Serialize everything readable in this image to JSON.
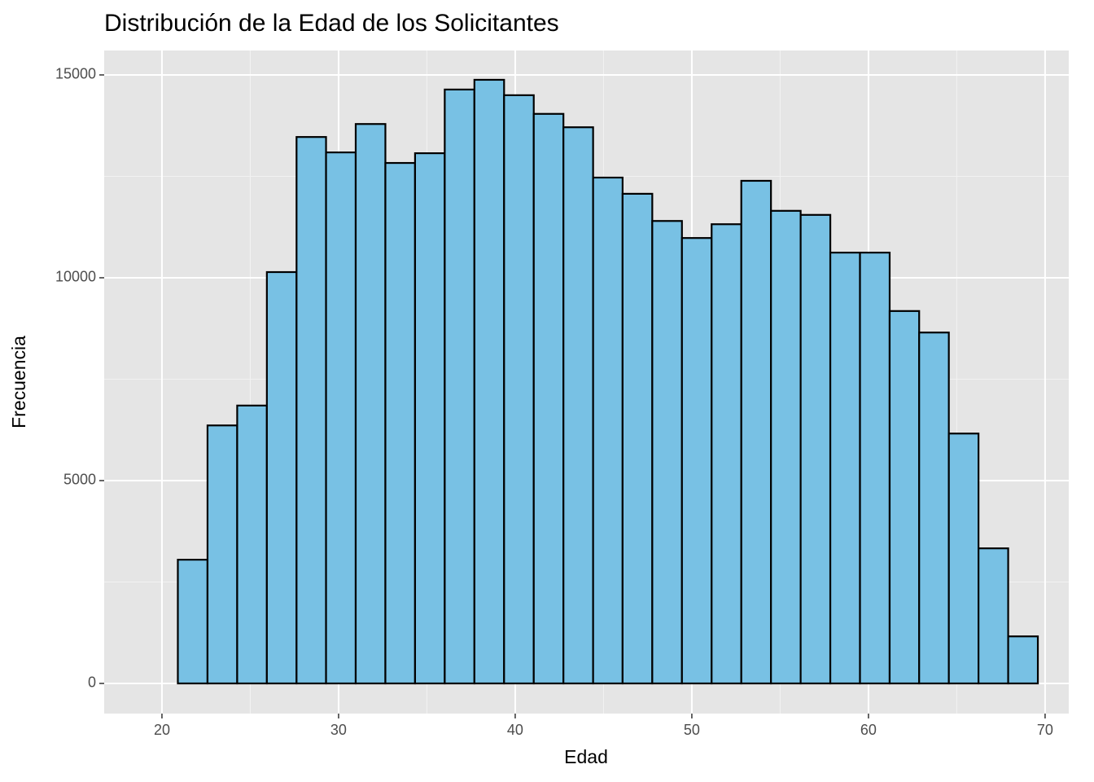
{
  "chart_data": {
    "type": "histogram",
    "title": "Distribución de la Edad de los Solicitantes",
    "x_label": "Edad",
    "y_label": "Frecuencia",
    "bins": [
      19.22,
      20.9,
      22.58,
      24.26,
      25.94,
      27.62,
      29.29,
      30.97,
      32.65,
      34.33,
      36.01,
      37.69,
      39.37,
      41.05,
      42.73,
      44.41,
      46.08,
      47.76,
      49.44,
      51.12,
      52.8,
      54.48,
      56.16,
      57.84,
      59.52,
      61.2,
      62.87,
      64.55,
      66.23,
      67.91,
      69.59
    ],
    "values": [
      0,
      3050,
      6360,
      6850,
      10140,
      13470,
      13090,
      13790,
      12830,
      13070,
      14640,
      14880,
      14500,
      14040,
      13710,
      12470,
      12070,
      11400,
      10980,
      11320,
      12390,
      11650,
      11550,
      10620,
      10620,
      9180,
      8650,
      6160,
      3330,
      1160
    ],
    "color": "#78c1e4",
    "edge_color": "#000000",
    "xlim": [
      16.73,
      71.34
    ],
    "ylim": [
      -743,
      15602
    ],
    "xticks": [
      20,
      30,
      40,
      50,
      60,
      70
    ],
    "yticks": [
      0,
      5000,
      10000,
      15000
    ],
    "grid": true
  }
}
